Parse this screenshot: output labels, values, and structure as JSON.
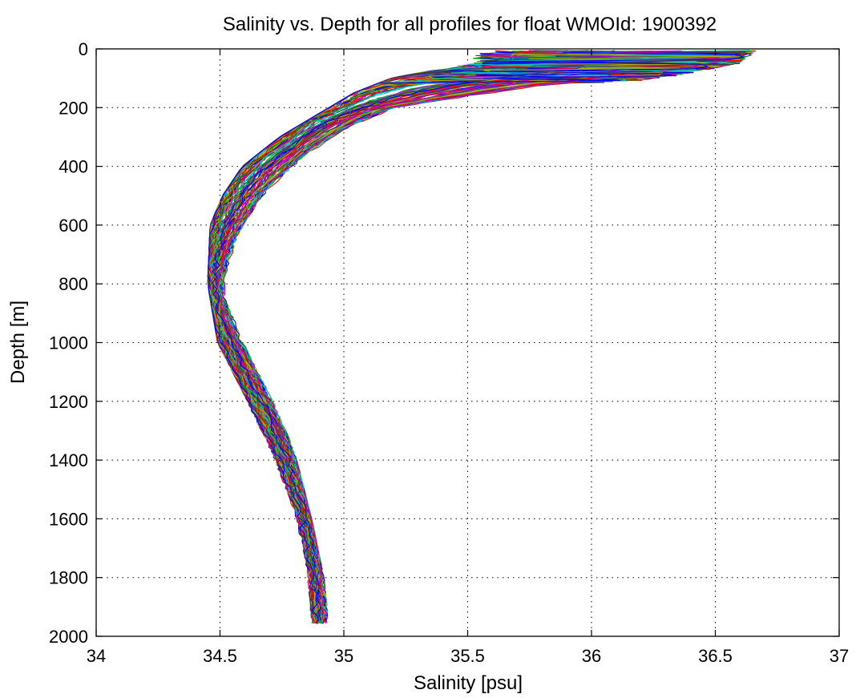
{
  "chart_data": {
    "type": "line",
    "title": "Salinity vs. Depth for all profiles for float WMOId: 1900392",
    "xlabel": "Salinity [psu]",
    "ylabel": "Depth [m]",
    "xlim": [
      34,
      37
    ],
    "ylim": [
      2000,
      0
    ],
    "y_inverted": true,
    "grid": true,
    "legend": "none",
    "x_ticks": [
      "34",
      "34.5",
      "35",
      "35.5",
      "36",
      "36.5",
      "37"
    ],
    "y_ticks": [
      "0",
      "200",
      "400",
      "600",
      "800",
      "1000",
      "1200",
      "1400",
      "1600",
      "1800",
      "2000"
    ],
    "profile_count_approx": 120,
    "colors": [
      "#0000ff",
      "#00a000",
      "#ff0000",
      "#00c0c0",
      "#c000c0",
      "#b0b000",
      "#404040"
    ],
    "typical_profile": {
      "depth": [
        5,
        40,
        70,
        100,
        130,
        160,
        200,
        250,
        300,
        350,
        400,
        450,
        500,
        550,
        600,
        650,
        700,
        750,
        800,
        850,
        900,
        950,
        1000,
        1100,
        1200,
        1300,
        1400,
        1500,
        1600,
        1700,
        1800,
        1900,
        1960
      ],
      "salinity": [
        36.2,
        36.1,
        35.9,
        35.6,
        35.35,
        35.2,
        35.05,
        34.92,
        34.83,
        34.75,
        34.68,
        34.62,
        34.58,
        34.55,
        34.52,
        34.5,
        34.49,
        34.48,
        34.48,
        34.48,
        34.5,
        34.52,
        34.54,
        34.6,
        34.66,
        34.72,
        34.77,
        34.81,
        34.85,
        34.87,
        34.89,
        34.9,
        34.9
      ]
    },
    "salinity_range_at_depth": {
      "depth": [
        0,
        50,
        100,
        150,
        200,
        300,
        400,
        500,
        600,
        800,
        1000,
        1200,
        1400,
        1600,
        1800,
        1950
      ],
      "min": [
        35.55,
        35.5,
        35.2,
        35.05,
        34.95,
        34.75,
        34.6,
        34.52,
        34.47,
        34.46,
        34.5,
        34.62,
        34.72,
        34.8,
        34.86,
        34.88
      ],
      "max": [
        36.68,
        36.6,
        36.3,
        35.8,
        35.3,
        35.0,
        34.85,
        34.72,
        34.62,
        34.52,
        34.6,
        34.72,
        34.8,
        34.86,
        34.91,
        34.93
      ]
    }
  }
}
